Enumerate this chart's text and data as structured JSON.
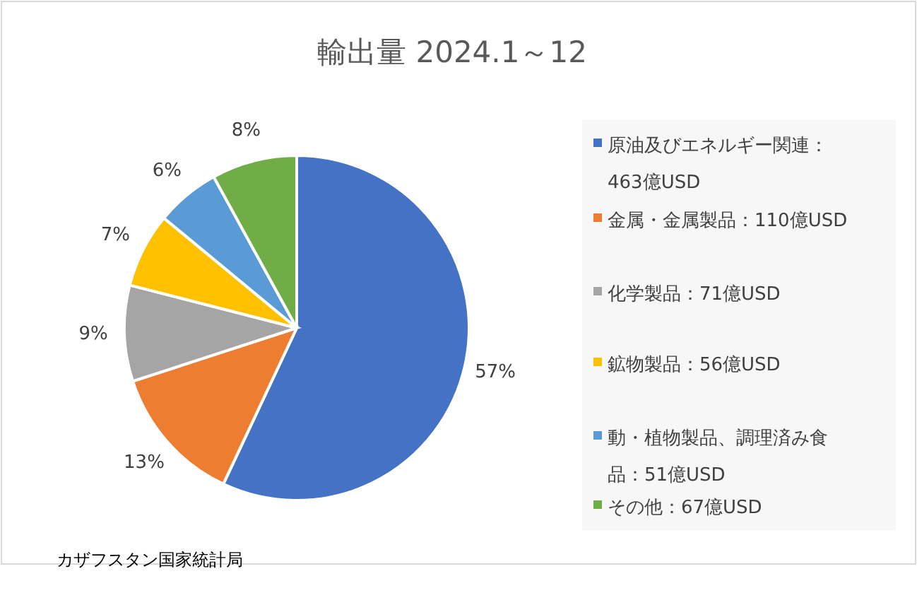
{
  "chart_data": {
    "type": "pie",
    "title": "輸出量 2024.1～12",
    "categories": [
      "原油及びエネルギー関連：463億USD",
      "金属・金属製品：110億USD",
      "化学製品：71億USD",
      "鉱物製品：56億USD",
      "動・植物製品、調理済み食品：51億USD",
      "その他：67億USD"
    ],
    "values": [
      57,
      13,
      9,
      7,
      6,
      8
    ],
    "colors": [
      "#4472c4",
      "#ed7d31",
      "#a5a5a5",
      "#ffc000",
      "#5b9bd5",
      "#70ad47"
    ],
    "value_labels": [
      "57%",
      "13%",
      "9%",
      "7%",
      "6%",
      "8%"
    ],
    "legend": "right",
    "annotations": [
      "カザフスタン国家統計局"
    ]
  }
}
